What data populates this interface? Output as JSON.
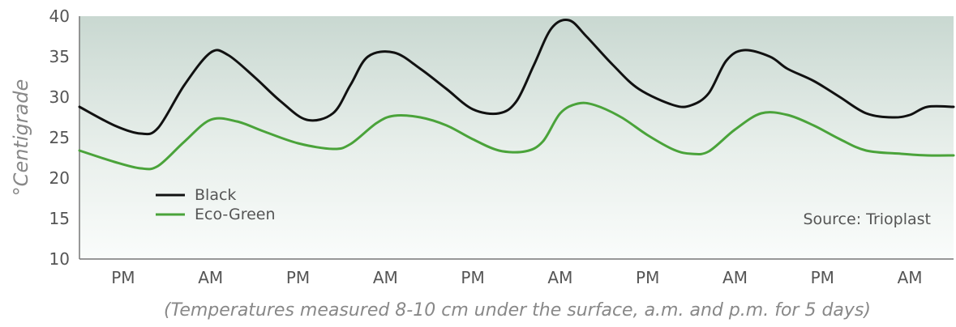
{
  "chart_data": {
    "type": "line",
    "title": "",
    "xlabel": "(Temperatures measured 8-10 cm under the surface, a.m. and p.m. for 5 days)",
    "ylabel": "°Centigrade",
    "ylim": [
      10,
      40
    ],
    "yticks": [
      10,
      15,
      20,
      25,
      30,
      35,
      40
    ],
    "xlim": [
      0,
      10
    ],
    "categories": [
      "PM",
      "AM",
      "PM",
      "AM",
      "PM",
      "AM",
      "PM",
      "AM",
      "PM",
      "AM"
    ],
    "grid": false,
    "legend_position": "bottom-left",
    "annotation": "Source: Trioplast",
    "series": [
      {
        "name": "Black",
        "color": "#111111",
        "x": [
          0,
          0.4,
          0.7,
          0.9,
          1.2,
          1.5,
          1.7,
          2.0,
          2.3,
          2.6,
          2.9,
          3.1,
          3.3,
          3.6,
          3.9,
          4.2,
          4.5,
          4.8,
          5.0,
          5.2,
          5.4,
          5.6,
          5.8,
          6.1,
          6.4,
          6.8,
          7.0,
          7.2,
          7.4,
          7.6,
          7.9,
          8.1,
          8.4,
          8.7,
          9.0,
          9.3,
          9.5,
          9.7,
          10.0
        ],
        "values": [
          28.8,
          26.5,
          25.5,
          26.2,
          31.5,
          35.5,
          35.2,
          32.5,
          29.5,
          27.2,
          28.0,
          31.5,
          35.0,
          35.5,
          33.5,
          31.0,
          28.5,
          28.0,
          29.5,
          34.0,
          38.5,
          39.5,
          37.5,
          34.0,
          31.0,
          29.0,
          29.0,
          30.5,
          34.5,
          35.8,
          35.0,
          33.5,
          32.0,
          30.0,
          28.0,
          27.5,
          27.8,
          28.8,
          28.8
        ]
      },
      {
        "name": "Eco-Green",
        "color": "#4aa33a",
        "x": [
          0,
          0.4,
          0.7,
          0.9,
          1.2,
          1.5,
          1.8,
          2.1,
          2.5,
          2.9,
          3.1,
          3.4,
          3.6,
          3.9,
          4.2,
          4.5,
          4.8,
          5.1,
          5.3,
          5.5,
          5.7,
          5.9,
          6.2,
          6.5,
          6.8,
          7.0,
          7.2,
          7.5,
          7.8,
          8.1,
          8.4,
          8.7,
          9.0,
          9.4,
          9.7,
          10.0
        ],
        "values": [
          23.4,
          22.0,
          21.2,
          21.5,
          24.5,
          27.2,
          27.0,
          25.8,
          24.3,
          23.6,
          24.2,
          26.8,
          27.7,
          27.5,
          26.5,
          24.8,
          23.4,
          23.3,
          24.5,
          28.0,
          29.2,
          29.0,
          27.5,
          25.3,
          23.5,
          23.0,
          23.3,
          26.0,
          28.0,
          27.8,
          26.5,
          24.8,
          23.4,
          23.0,
          22.8,
          22.8
        ]
      }
    ]
  }
}
